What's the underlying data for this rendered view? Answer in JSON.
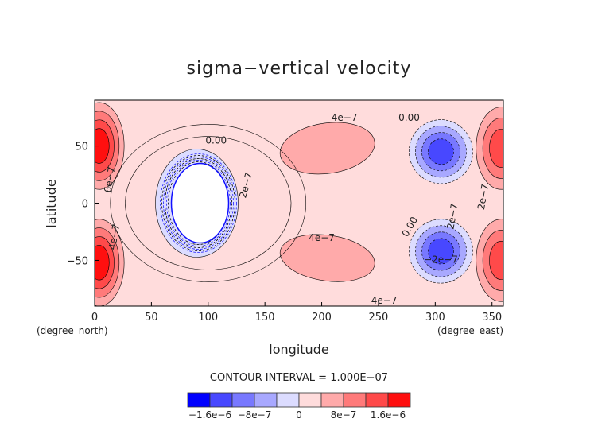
{
  "chart_data": {
    "type": "heatmap",
    "subtype": "filled-contour",
    "title": "sigma−vertical velocity",
    "xlabel": "longitude",
    "ylabel": "latitude",
    "x_unit": "(degree_east)",
    "y_unit": "(degree_north)",
    "xlim": [
      0,
      360
    ],
    "ylim": [
      -90,
      90
    ],
    "x_ticks": [
      0,
      50,
      100,
      150,
      200,
      250,
      300,
      350
    ],
    "y_ticks": [
      -50,
      0,
      50
    ],
    "y_tick_labels": [
      "−50",
      "0",
      "50"
    ],
    "contour_interval_text": "CONTOUR INTERVAL = 1.000E−07",
    "contour_interval": 1e-07,
    "contour_labels": [
      "0.00",
      "2e−7",
      "4e−7",
      "6e−7",
      "−2e−7"
    ],
    "colorbar": {
      "levels": [
        -2e-06,
        -1.6e-06,
        -1.2e-06,
        -8e-07,
        -4e-07,
        0,
        4e-07,
        8e-07,
        1.2e-06,
        1.6e-06,
        2e-06
      ],
      "tick_labels": [
        "−1.6e−6",
        "−8e−7",
        "0",
        "8e−7",
        "1.6e−6"
      ],
      "colors": [
        "#0000ff",
        "#4848ff",
        "#7878ff",
        "#a8a8ff",
        "#dcdcff",
        "#ffdcdc",
        "#ffaaaa",
        "#ff7a7a",
        "#ff4a4a",
        "#ff0f0f"
      ]
    },
    "features": [
      {
        "name": "positive maximum",
        "lon": 5,
        "lat": 55,
        "value_approx": 1.6e-06
      },
      {
        "name": "positive maximum",
        "lon": 5,
        "lat": -55,
        "value_approx": 1.6e-06
      },
      {
        "name": "positive maximum",
        "lon": 355,
        "lat": 55,
        "value_approx": 1.2e-06
      },
      {
        "name": "positive maximum",
        "lon": 355,
        "lat": -55,
        "value_approx": 1.2e-06
      },
      {
        "name": "positive region",
        "lon": 210,
        "lat": 50,
        "value_approx": 6e-07
      },
      {
        "name": "positive region",
        "lon": 210,
        "lat": -50,
        "value_approx": 6e-07
      },
      {
        "name": "negative minimum",
        "lon": 305,
        "lat": 45,
        "value_approx": -8e-07
      },
      {
        "name": "negative minimum",
        "lon": 305,
        "lat": -40,
        "value_approx": -8e-07
      },
      {
        "name": "missing-data hole",
        "lon": 90,
        "lat": 0
      }
    ]
  }
}
